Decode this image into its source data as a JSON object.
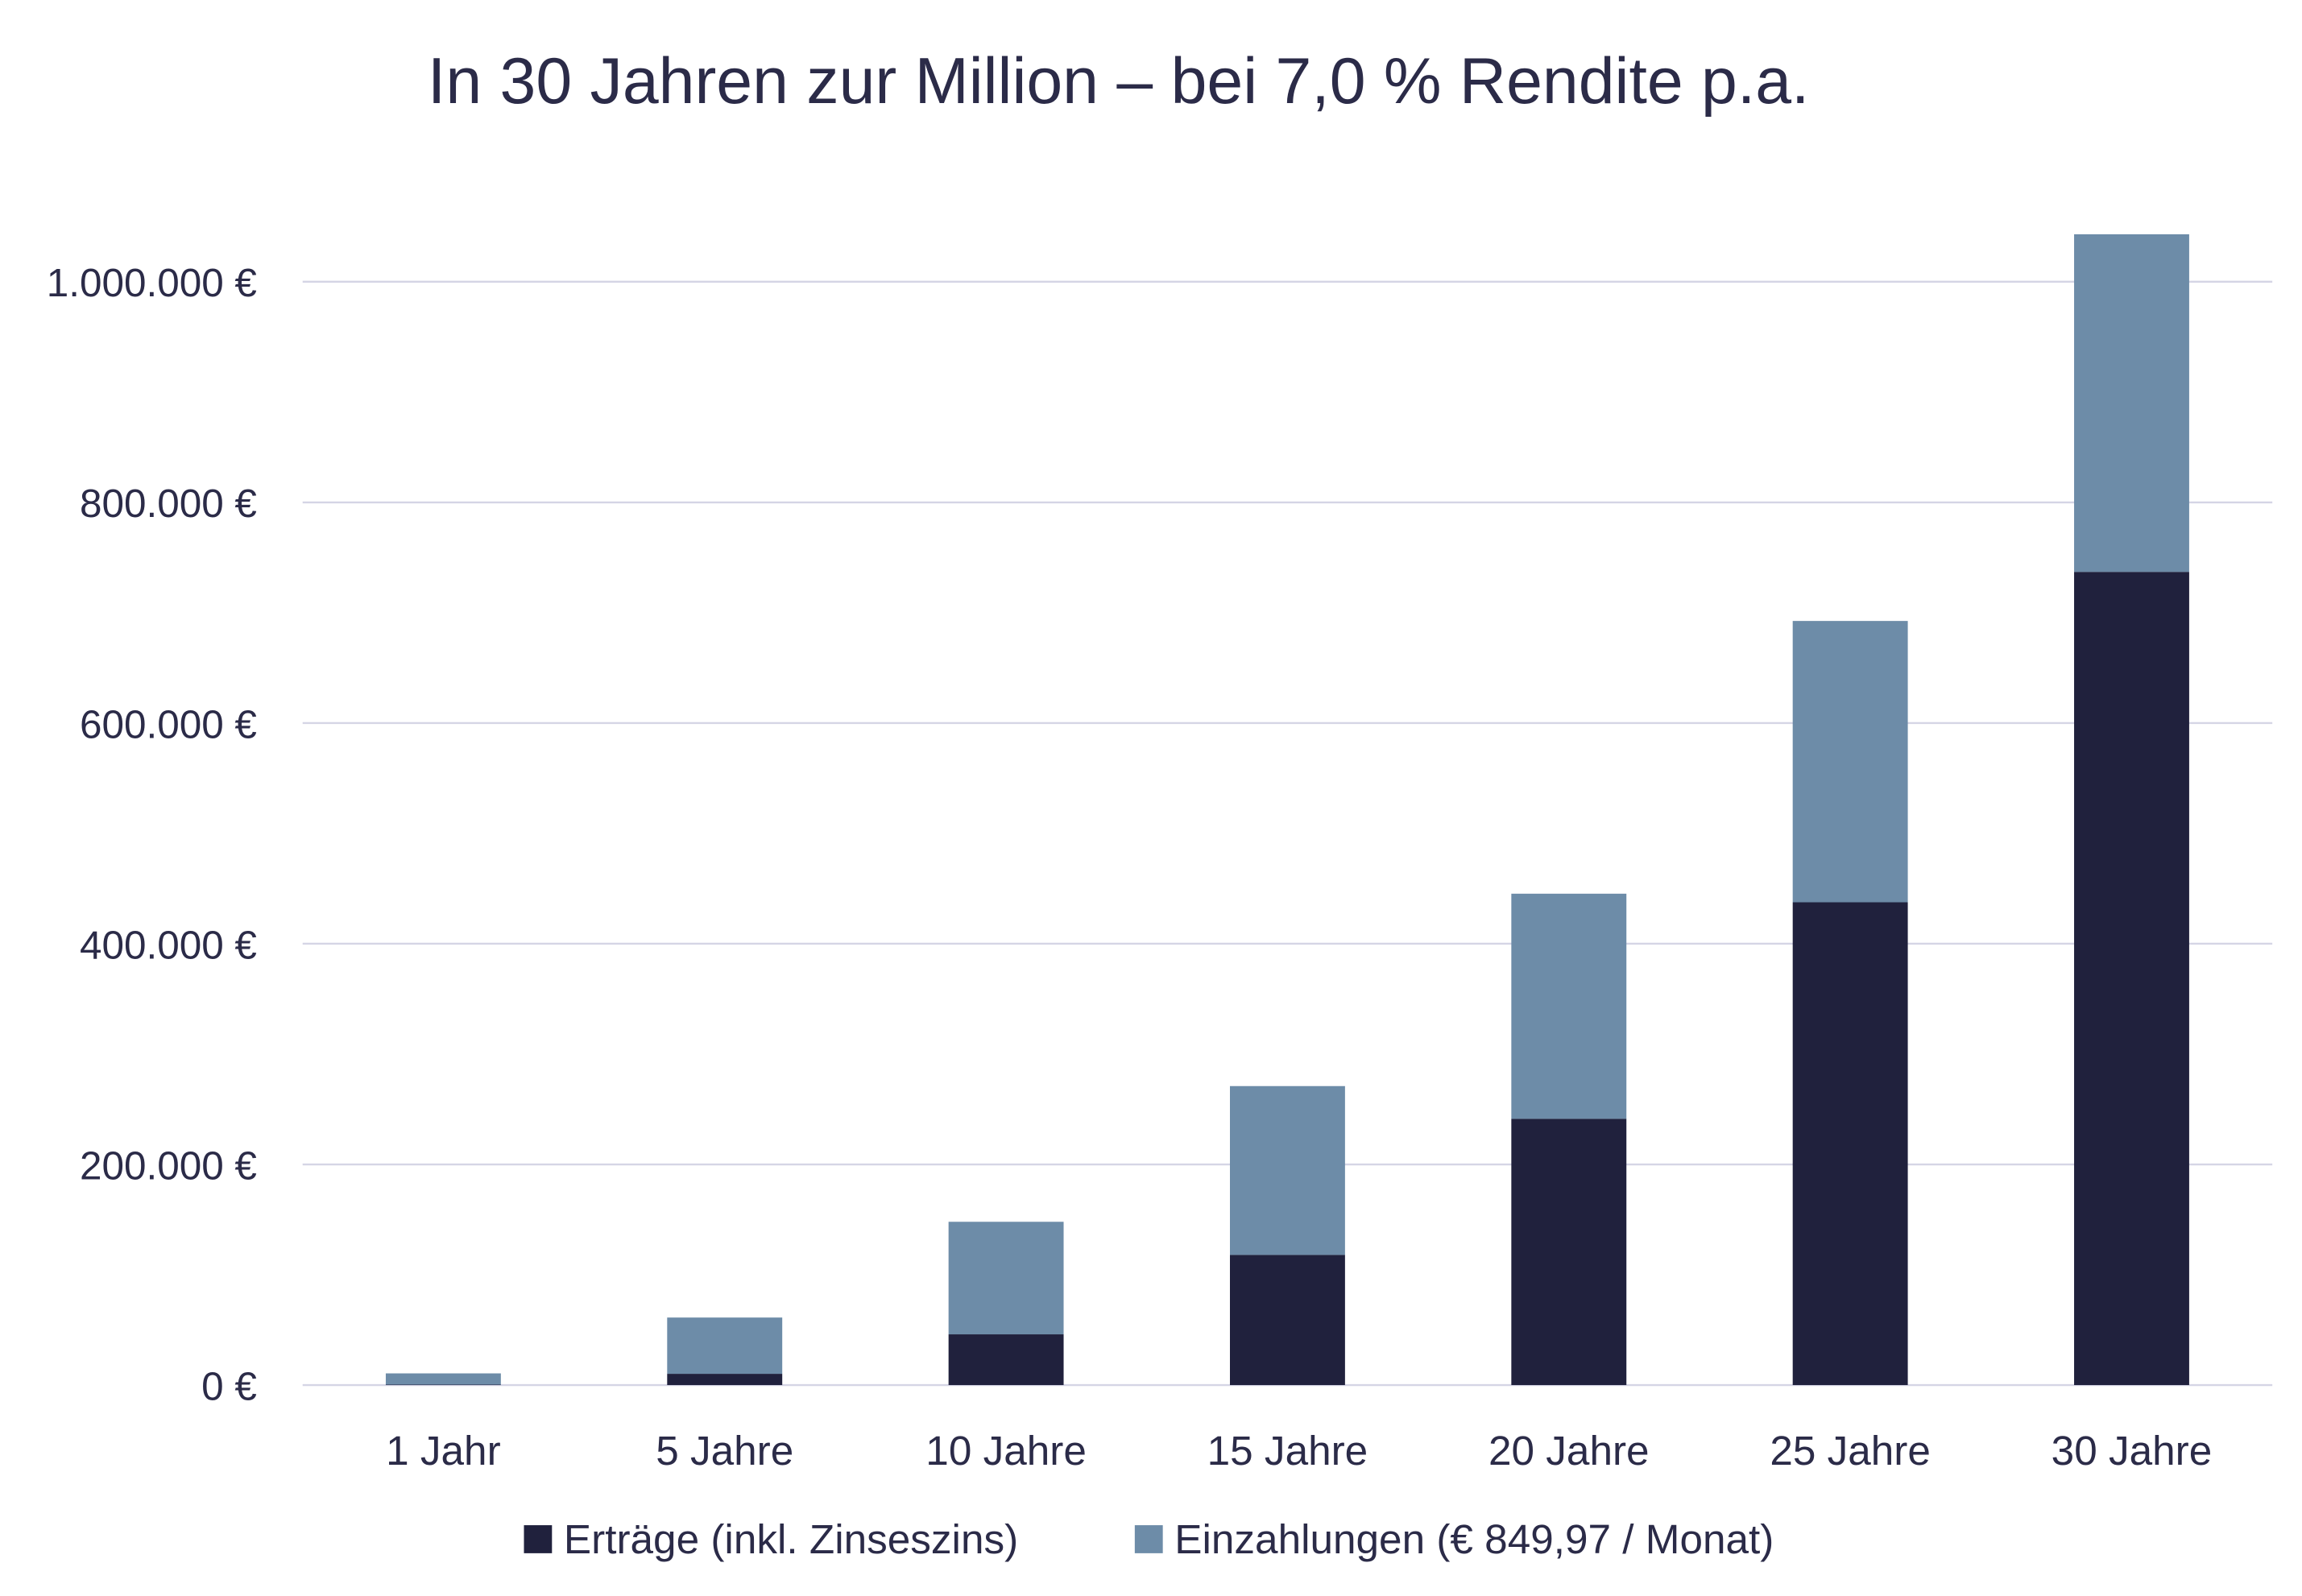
{
  "chart_data": {
    "type": "bar",
    "stacked": true,
    "title": "In 30 Jahren zur Million – bei 7,0 % Rendite p.a.",
    "xlabel": "",
    "ylabel": "",
    "categories": [
      "1 Jahr",
      "5 Jahre",
      "10 Jahre",
      "15 Jahre",
      "20 Jahre",
      "25 Jahre",
      "30 Jahre"
    ],
    "series": [
      {
        "name": "Erträge (inkl. Zinseszins)",
        "color": "#20213d",
        "values": [
          395,
          10207,
          45992,
          117987,
          241360,
          437565,
          737026
        ]
      },
      {
        "name": "Einzahlungen (€ 849,97 / Monat)",
        "color": "#6d8ca8",
        "values": [
          10200,
          50998,
          101996,
          152995,
          203993,
          254991,
          305989
        ]
      }
    ],
    "ylim": [
      0,
      1000000
    ],
    "yticks": [
      0,
      200000,
      400000,
      600000,
      800000,
      1000000
    ],
    "ytick_labels": [
      "0 €",
      "200.000 €",
      "400.000 €",
      "600.000 €",
      "800.000 €",
      "1.000.000 €"
    ],
    "grid": true,
    "grid_color": "#d5d5e5",
    "legend_position": "bottom"
  }
}
